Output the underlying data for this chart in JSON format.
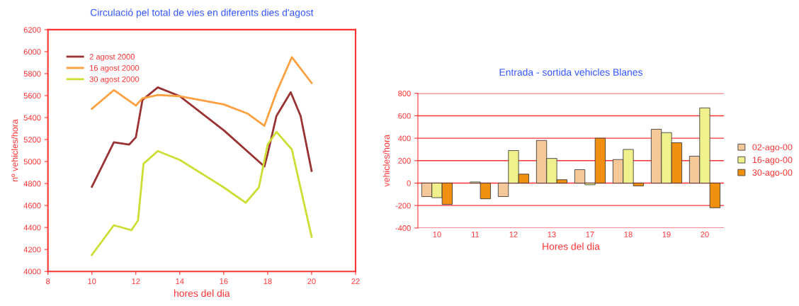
{
  "chart_data": [
    {
      "type": "line",
      "title": "Circulació pel total de vies en diferents dies d'agost",
      "xlabel": "hores del dia",
      "ylabel": "nº vehicles/hora",
      "xlim": [
        8,
        22
      ],
      "xticks": [
        8,
        10,
        12,
        14,
        16,
        18,
        20,
        22
      ],
      "ylim": [
        4000,
        6200
      ],
      "yticks": [
        4000,
        4200,
        4400,
        4600,
        4800,
        5000,
        5200,
        5400,
        5600,
        5800,
        6000,
        6200
      ],
      "grid": false,
      "legend": "top left",
      "marker": "none",
      "line_style": "solid",
      "series": [
        {
          "name": "2 agost 2000",
          "color": "#993333",
          "x": [
            10,
            11,
            11.7,
            12,
            12.3,
            13,
            14,
            16,
            17.85,
            18,
            18.4,
            19.05,
            19.5,
            20
          ],
          "values": [
            4770,
            5175,
            5155,
            5220,
            5560,
            5675,
            5595,
            5285,
            4955,
            5070,
            5415,
            5630,
            5415,
            4915
          ]
        },
        {
          "name": "16 agost 2000",
          "color": "#ffa040",
          "x": [
            10,
            11,
            12,
            12.3,
            13,
            14,
            16,
            17.1,
            17.85,
            18.4,
            19.1,
            20
          ],
          "values": [
            5480,
            5650,
            5510,
            5575,
            5605,
            5595,
            5520,
            5435,
            5325,
            5630,
            5950,
            5715
          ]
        },
        {
          "name": "30 agost 2000",
          "color": "#ccdd33",
          "x": [
            10,
            11,
            11.8,
            12.1,
            12.35,
            13,
            14,
            16,
            17,
            17.6,
            18,
            18.4,
            19.1,
            20
          ],
          "values": [
            4150,
            4420,
            4375,
            4465,
            4980,
            5095,
            5015,
            4765,
            4625,
            4765,
            5155,
            5270,
            5110,
            4315
          ]
        }
      ]
    },
    {
      "type": "bar",
      "title": "Entrada - sortida vehicles Blanes",
      "xlabel": "Hores del dia",
      "ylabel": "vehicles/hora",
      "categories": [
        "10",
        "11",
        "12",
        "13",
        "17",
        "18",
        "19",
        "20"
      ],
      "ylim": [
        -400,
        800
      ],
      "yticks": [
        -400,
        -200,
        0,
        200,
        400,
        600,
        800
      ],
      "grid": "y",
      "legend": "right",
      "series": [
        {
          "name": "02-ago-00",
          "color": "#f5c89a",
          "values": [
            -120,
            null,
            -120,
            380,
            120,
            210,
            480,
            240
          ]
        },
        {
          "name": "16-ago-00",
          "color": "#f0f08c",
          "values": [
            -130,
            10,
            290,
            220,
            -15,
            300,
            450,
            670
          ]
        },
        {
          "name": "30-ago-00",
          "color": "#f09010",
          "values": [
            -190,
            -140,
            80,
            30,
            400,
            -25,
            360,
            -220
          ]
        }
      ]
    }
  ]
}
